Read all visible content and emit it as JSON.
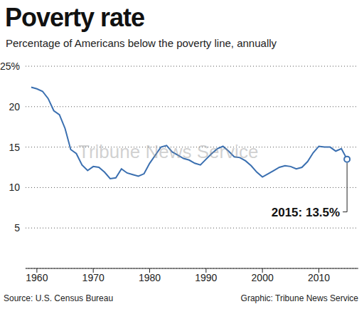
{
  "chart_data": {
    "type": "line",
    "title": "Poverty rate",
    "subtitle": "Percentage of Americans below the poverty line, annually",
    "x": [
      1959,
      1960,
      1961,
      1962,
      1963,
      1964,
      1965,
      1966,
      1967,
      1968,
      1969,
      1970,
      1971,
      1972,
      1973,
      1974,
      1975,
      1976,
      1977,
      1978,
      1979,
      1980,
      1981,
      1982,
      1983,
      1984,
      1985,
      1986,
      1987,
      1988,
      1989,
      1990,
      1991,
      1992,
      1993,
      1994,
      1995,
      1996,
      1997,
      1998,
      1999,
      2000,
      2001,
      2002,
      2003,
      2004,
      2005,
      2006,
      2007,
      2008,
      2009,
      2010,
      2011,
      2012,
      2013,
      2014,
      2015
    ],
    "values": [
      22.4,
      22.2,
      21.9,
      21.0,
      19.5,
      19.0,
      17.3,
      14.7,
      14.2,
      12.8,
      12.1,
      12.6,
      12.5,
      11.9,
      11.1,
      11.2,
      12.3,
      11.8,
      11.6,
      11.4,
      11.7,
      13.0,
      14.0,
      15.0,
      15.2,
      14.4,
      14.0,
      13.6,
      13.4,
      13.0,
      12.8,
      13.5,
      14.2,
      14.8,
      15.1,
      14.5,
      13.8,
      13.7,
      13.3,
      12.7,
      11.9,
      11.3,
      11.7,
      12.1,
      12.5,
      12.7,
      12.6,
      12.3,
      12.5,
      13.2,
      14.3,
      15.1,
      15.0,
      15.0,
      14.5,
      14.8,
      13.5
    ],
    "color": "#3a6fb0",
    "xlim": [
      1958,
      2017
    ],
    "xticks": [
      1960,
      1970,
      1980,
      1990,
      2000,
      2010
    ],
    "ylim": [
      0,
      25
    ],
    "yticks": [
      5,
      10,
      15,
      20,
      {
        "value": 25,
        "label": "25%"
      }
    ],
    "grid": true,
    "annotations": [
      {
        "x": 2015,
        "y": 13.5,
        "text": "2015: 13.5%"
      }
    ],
    "source": "Source: U.S. Census Bureau",
    "credit": "Graphic: Tribune News Service",
    "watermark": "Tribune News Service"
  }
}
